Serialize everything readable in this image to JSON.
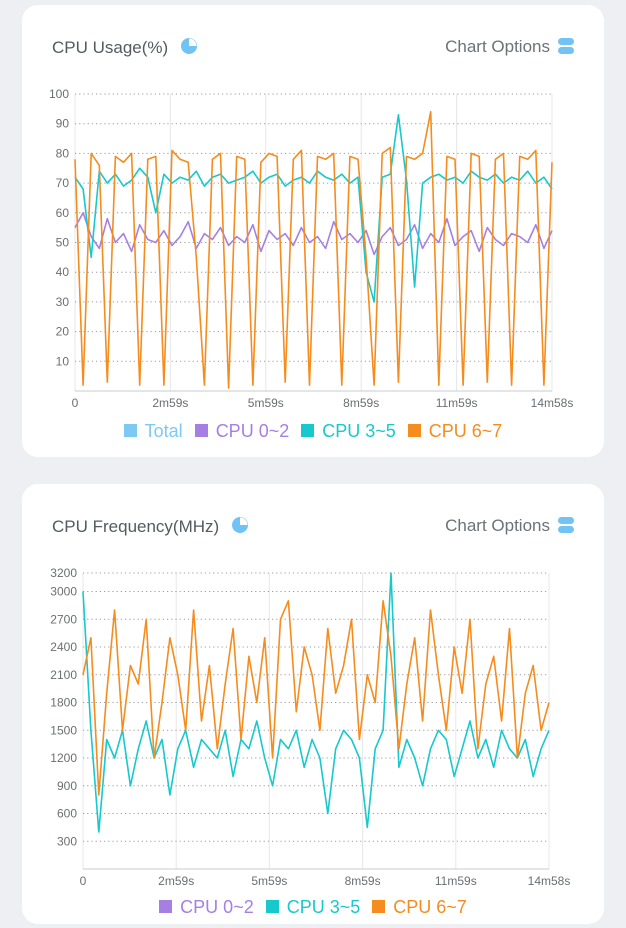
{
  "colors": {
    "total": "#7cc9f3",
    "cpu02": "#a67fe3",
    "cpu35": "#17c8cd",
    "cpu67": "#f58c1d",
    "icon": "#71c3f5"
  },
  "cards": [
    {
      "title": "CPU Usage(%)",
      "title_icon": "pie-chart-icon",
      "options_label": "Chart Options",
      "options_icon": "toggle-list-icon",
      "legend": [
        {
          "label": "Total",
          "color_key": "total"
        },
        {
          "label": "CPU 0~2",
          "color_key": "cpu02"
        },
        {
          "label": "CPU 3~5",
          "color_key": "cpu35"
        },
        {
          "label": "CPU 6~7",
          "color_key": "cpu67"
        }
      ]
    },
    {
      "title": "CPU Frequency(MHz)",
      "title_icon": "pie-chart-icon",
      "options_label": "Chart Options",
      "options_icon": "toggle-list-icon",
      "legend": [
        {
          "label": "CPU 0~2",
          "color_key": "cpu02"
        },
        {
          "label": "CPU 3~5",
          "color_key": "cpu35"
        },
        {
          "label": "CPU 6~7",
          "color_key": "cpu67"
        }
      ]
    }
  ],
  "chart_data": [
    {
      "type": "line",
      "title": "CPU Usage(%)",
      "x_ticks": [
        "0",
        "2m59s",
        "5m59s",
        "8m59s",
        "11m59s",
        "14m58s"
      ],
      "y_ticks": [
        10,
        20,
        30,
        40,
        50,
        60,
        70,
        80,
        90,
        100
      ],
      "ylim": [
        0,
        100
      ],
      "grid": true,
      "legend_position": "bottom",
      "series": [
        {
          "name": "CPU 0~2",
          "color_key": "cpu02",
          "values": [
            55,
            60,
            52,
            48,
            58,
            50,
            53,
            47,
            56,
            51,
            50,
            54,
            49,
            52,
            57,
            48,
            53,
            51,
            55,
            49,
            52,
            50,
            56,
            47,
            54,
            51,
            53,
            49,
            55,
            50,
            52,
            48,
            57,
            51,
            53,
            50,
            54,
            46,
            52,
            55,
            49,
            51,
            56,
            48,
            53,
            50,
            58,
            49,
            52,
            54,
            47,
            55,
            51,
            49,
            53,
            52,
            50,
            56,
            48,
            54
          ]
        },
        {
          "name": "CPU 3~5",
          "color_key": "cpu35",
          "values": [
            72,
            68,
            45,
            74,
            70,
            73,
            69,
            71,
            75,
            72,
            60,
            73,
            70,
            72,
            71,
            74,
            69,
            72,
            73,
            70,
            71,
            72,
            74,
            70,
            72,
            73,
            69,
            71,
            72,
            70,
            74,
            72,
            71,
            73,
            70,
            72,
            40,
            30,
            72,
            73,
            93,
            71,
            35,
            70,
            72,
            73,
            71,
            72,
            70,
            74,
            72,
            71,
            73,
            70,
            72,
            71,
            74,
            70,
            72,
            68
          ]
        },
        {
          "name": "CPU 6~7",
          "color_key": "cpu67",
          "values": [
            78,
            2,
            80,
            76,
            3,
            79,
            77,
            80,
            2,
            78,
            79,
            2,
            81,
            78,
            77,
            45,
            2,
            78,
            80,
            1,
            79,
            78,
            2,
            77,
            80,
            79,
            3,
            78,
            81,
            2,
            79,
            78,
            80,
            2,
            79,
            78,
            45,
            2,
            80,
            82,
            3,
            79,
            78,
            80,
            94,
            2,
            79,
            78,
            2,
            80,
            79,
            3,
            78,
            80,
            2,
            79,
            78,
            81,
            2,
            77
          ]
        }
      ]
    },
    {
      "type": "line",
      "title": "CPU Frequency(MHz)",
      "x_ticks": [
        "0",
        "2m59s",
        "5m59s",
        "8m59s",
        "11m59s",
        "14m58s"
      ],
      "y_ticks": [
        300,
        600,
        900,
        1200,
        1500,
        1800,
        2100,
        2400,
        2700,
        3000,
        3200
      ],
      "ylim": [
        0,
        3200
      ],
      "grid": true,
      "legend_position": "bottom",
      "series": [
        {
          "name": "CPU 0~2",
          "color_key": "cpu02",
          "values": []
        },
        {
          "name": "CPU 3~5",
          "color_key": "cpu35",
          "values": [
            3000,
            1500,
            400,
            1400,
            1200,
            1500,
            900,
            1300,
            1600,
            1200,
            1400,
            800,
            1300,
            1500,
            1100,
            1400,
            1300,
            1200,
            1500,
            1000,
            1400,
            1300,
            1600,
            1200,
            900,
            1400,
            1300,
            1500,
            1100,
            1400,
            1200,
            600,
            1300,
            1500,
            1400,
            1200,
            450,
            1300,
            1500,
            3200,
            1100,
            1400,
            1200,
            900,
            1300,
            1500,
            1400,
            1000,
            1300,
            1600,
            1200,
            1400,
            1100,
            1500,
            1300,
            1200,
            1400,
            1000,
            1300,
            1500
          ]
        },
        {
          "name": "CPU 6~7",
          "color_key": "cpu67",
          "values": [
            2100,
            2500,
            800,
            1900,
            2800,
            1500,
            2200,
            2000,
            2700,
            1200,
            1800,
            2500,
            2100,
            1500,
            2800,
            1600,
            2200,
            1300,
            2000,
            2600,
            1400,
            2300,
            1800,
            2500,
            1200,
            2700,
            2900,
            1700,
            2400,
            2100,
            1500,
            2600,
            1900,
            2200,
            2700,
            1400,
            2100,
            1800,
            2900,
            2300,
            1300,
            2000,
            2500,
            1600,
            2800,
            2100,
            1500,
            2400,
            1900,
            2700,
            1300,
            2000,
            2300,
            1600,
            2600,
            1200,
            1900,
            2200,
            1500,
            1800
          ]
        }
      ]
    }
  ]
}
